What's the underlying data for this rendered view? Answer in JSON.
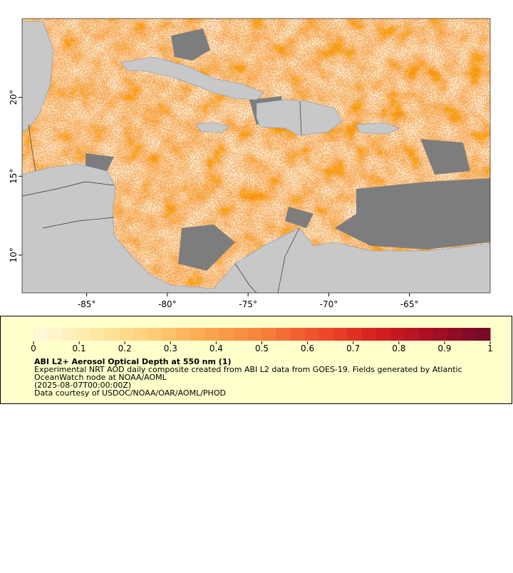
{
  "map": {
    "type": "map",
    "xlim": [
      -89,
      -60
    ],
    "ylim": [
      7.6,
      25
    ],
    "xticks": [
      {
        "value": -85,
        "label": "-85°"
      },
      {
        "value": -80,
        "label": "-80°"
      },
      {
        "value": -75,
        "label": "-75°"
      },
      {
        "value": -70,
        "label": "-70°"
      },
      {
        "value": -65,
        "label": "-65°"
      }
    ],
    "yticks": [
      {
        "value": 10,
        "label": "10°"
      },
      {
        "value": 15,
        "label": "15°"
      },
      {
        "value": 20,
        "label": "20°"
      }
    ]
  },
  "colorbar": {
    "lim": [
      0,
      1
    ],
    "ticks": [
      0,
      0.1,
      0.2,
      0.3,
      0.4,
      0.5,
      0.6,
      0.7,
      0.8,
      0.9,
      1
    ],
    "colors": [
      "#fffbe0",
      "#feeaa8",
      "#fed17a",
      "#fca94e",
      "#f7823a",
      "#ee4f2a",
      "#d61f1f",
      "#a70d24",
      "#6e0a2a"
    ]
  },
  "legend": {
    "title": "ABI L2+ Aerosol Optical Depth at 550 nm (1)",
    "lines": [
      "Experimental NRT AOD daily composite created from ABI L2 data from GOES-19. Fields generated by Atlantic",
      "OceanWatch node at NOAA/AOML",
      "(2025-08-07T00:00:00Z)",
      "Data courtesy of USDOC/NOAA/OAR/AOML/PHOD"
    ]
  }
}
